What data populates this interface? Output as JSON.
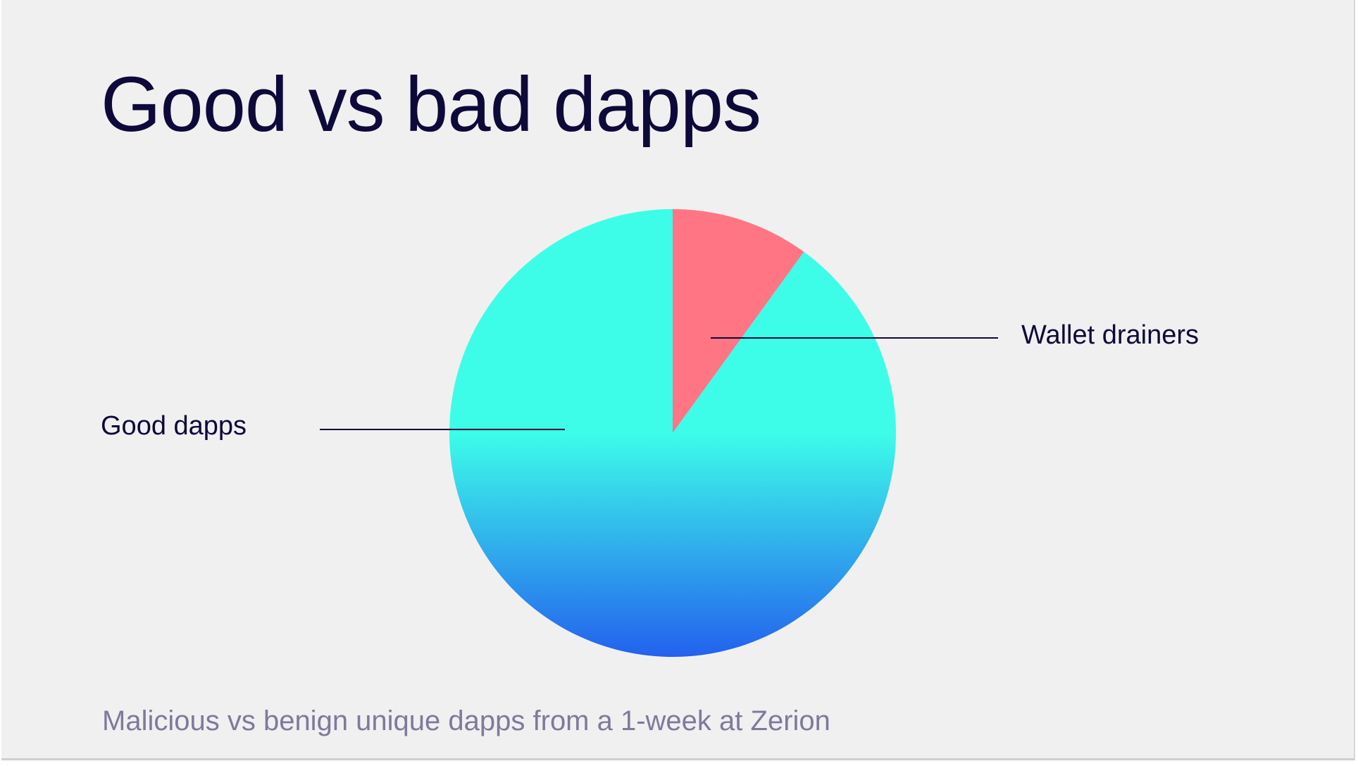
{
  "slide": {
    "title": "Good vs bad dapps",
    "caption": "Malicious vs benign unique dapps from a 1-week at Zerion"
  },
  "colors": {
    "title": "#0d0a3a",
    "caption": "#7e7a9b",
    "background": "#f0f0f0",
    "wallet_drainers": "#ff7584",
    "good_dapps_top": "#3dfde9",
    "good_dapps_bottom": "#2361ee",
    "leader_line": "#0d0a3a"
  },
  "chart_data": {
    "type": "pie",
    "title": "",
    "slices": [
      {
        "label": "Wallet drainers",
        "value": 10,
        "color": "#ff7584"
      },
      {
        "label": "Good dapps",
        "value": 90,
        "color": "gradient(#3dfde9 → #2361ee)"
      }
    ],
    "start_angle": "12 o'clock, clockwise",
    "legend": "none (direct labels with leader lines)",
    "slice_values_shown": false
  }
}
